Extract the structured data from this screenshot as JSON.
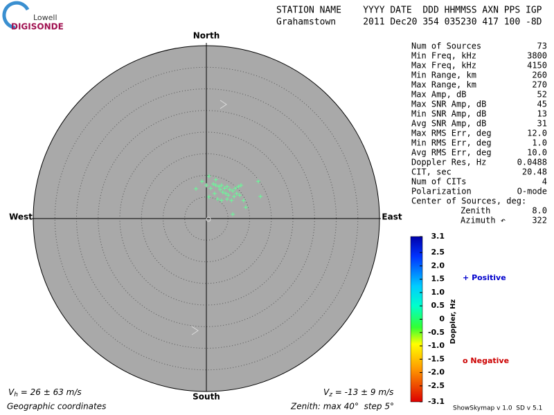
{
  "chart_data": {
    "type": "skymap",
    "logo": {
      "top": "Lowell",
      "bottom": "DIGISONDE"
    },
    "header": {
      "columns": "STATION NAME    YYYY DATE  DDD HHMMSS AXN PPS IGP",
      "values": "Grahamstown     2011 Dec20 354 035230 417 100 -8D"
    },
    "directions": {
      "north": "North",
      "south": "South",
      "east": "East",
      "west": "West"
    },
    "xlim": [
      -40,
      40
    ],
    "ylim": [
      -40,
      40
    ],
    "rings": [
      5,
      10,
      15,
      20,
      25,
      30,
      35
    ],
    "series": [
      {
        "name": "Positive",
        "color": "#66ff99",
        "x": [
          0.6,
          -2.4,
          0,
          1.6,
          2.2,
          2.9,
          3.5,
          4.2,
          4.8,
          5.4,
          3.2,
          3.8,
          4.5,
          5.1,
          6.1,
          6.7,
          7.4,
          8,
          12,
          12.5,
          8.6,
          9.1,
          6.1,
          2.6,
          3.5,
          4.8,
          1.9,
          1,
          -1,
          6.4,
          7,
          5.8,
          7.7,
          2.2,
          0.6
        ],
        "values": [
          9.8,
          6.9,
          7.7,
          8,
          7.7,
          7.4,
          7.7,
          7,
          7.4,
          6.7,
          6.7,
          6.1,
          5.8,
          5.4,
          6.4,
          7,
          7.4,
          7.7,
          8.6,
          5.1,
          4.2,
          2.6,
          1,
          4.5,
          4.2,
          4.5,
          5.8,
          7,
          8.6,
          5.1,
          5.8,
          4.2,
          5.4,
          9,
          5
        ]
      }
    ],
    "stats": [
      {
        "label": "Num of Sources",
        "value": "73"
      },
      {
        "label": "Min Freq, kHz",
        "value": "3800"
      },
      {
        "label": "Max Freq, kHz",
        "value": "4150"
      },
      {
        "label": "Min Range, km",
        "value": "260"
      },
      {
        "label": "Max Range, km",
        "value": "270"
      },
      {
        "label": "Max Amp, dB",
        "value": "52"
      },
      {
        "label": "Max SNR Amp, dB",
        "value": "45"
      },
      {
        "label": "Min SNR Amp, dB",
        "value": "13"
      },
      {
        "label": "Avg SNR Amp, dB",
        "value": "31"
      },
      {
        "label": "Max RMS Err, deg",
        "value": "12.0"
      },
      {
        "label": "Min RMS Err, deg",
        "value": "1.0"
      },
      {
        "label": "Avg RMS Err, deg",
        "value": "10.0"
      },
      {
        "label": "Doppler Res, Hz",
        "value": "0.0488"
      },
      {
        "label": "CIT, sec",
        "value": "20.48"
      },
      {
        "label": "Num of CITs",
        "value": "4"
      },
      {
        "label": "Polarization",
        "value": "O-mode"
      }
    ],
    "center": {
      "title": "Center of Sources, deg:",
      "rows": [
        {
          "label": "Zenith",
          "value": "8.0"
        },
        {
          "label": "Azimuth ↶",
          "value": "322"
        }
      ]
    },
    "colorbar": {
      "label": "Doppler, Hz",
      "lim": [
        -3.1,
        3.1
      ],
      "ticks": [
        3.1,
        2.5,
        {
          "value": 2,
          "label": "2.0"
        },
        1.5,
        {
          "value": 1,
          "label": "1.0"
        },
        0.5,
        0,
        -0.5,
        {
          "value": -1,
          "label": "-1.0"
        },
        -1.5,
        {
          "value": -2,
          "label": "-2.0"
        },
        -2.5,
        -3.1
      ]
    },
    "legend": {
      "positive": {
        "symbol": "+",
        "text": "Positive"
      },
      "negative": {
        "symbol": "o",
        "text": "Negative"
      }
    },
    "vh": {
      "symbol": "V",
      "sub": "h",
      "text": " = 26 ± 63 m/s"
    },
    "vz": {
      "symbol": "V",
      "sub": "z",
      "text": " = -13 ± 9 m/s"
    },
    "coords": "Geographic coordinates",
    "zenith_note": "Zenith: max 40°  step 5°",
    "version": "ShowSkymap v 1.0  SD v 5.1"
  }
}
